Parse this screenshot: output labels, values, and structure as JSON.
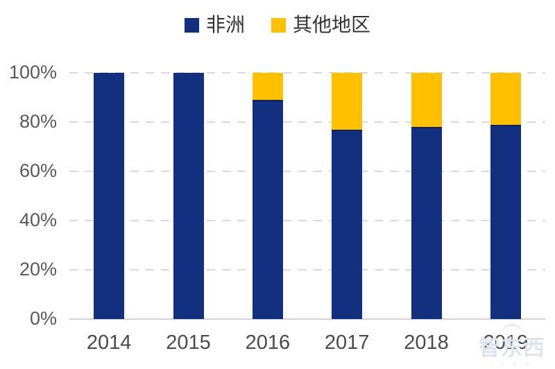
{
  "page": {
    "background": "#ffffff"
  },
  "chart_data": {
    "type": "bar",
    "stacked": true,
    "title": "",
    "xlabel": "",
    "ylabel": "",
    "categories": [
      "2014",
      "2015",
      "2016",
      "2017",
      "2018",
      "2019"
    ],
    "series": [
      {
        "name": "非洲",
        "color": "#132F80",
        "values": [
          100,
          100,
          89,
          77,
          78,
          79
        ]
      },
      {
        "name": "其他地区",
        "color": "#FFC000",
        "values": [
          0,
          0,
          11,
          23,
          22,
          21
        ]
      }
    ],
    "ylim": [
      0,
      100
    ],
    "yticks": [
      {
        "value": 0,
        "label": "0%"
      },
      {
        "value": 20,
        "label": "20%"
      },
      {
        "value": 40,
        "label": "40%"
      },
      {
        "value": 60,
        "label": "60%"
      },
      {
        "value": 80,
        "label": "80%"
      },
      {
        "value": 100,
        "label": "100%"
      }
    ],
    "grid": "horizontal-dashed",
    "legend_position": "top-center",
    "colors": {
      "axis_text": "#595959",
      "xaxis_text": "#4a4a4a",
      "gridline": "#d9d9d9",
      "axis_line": "#d3d3d3",
      "seam": "#0e2254"
    }
  },
  "watermark": {
    "text": "智东西",
    "subtext": ". c o m"
  }
}
